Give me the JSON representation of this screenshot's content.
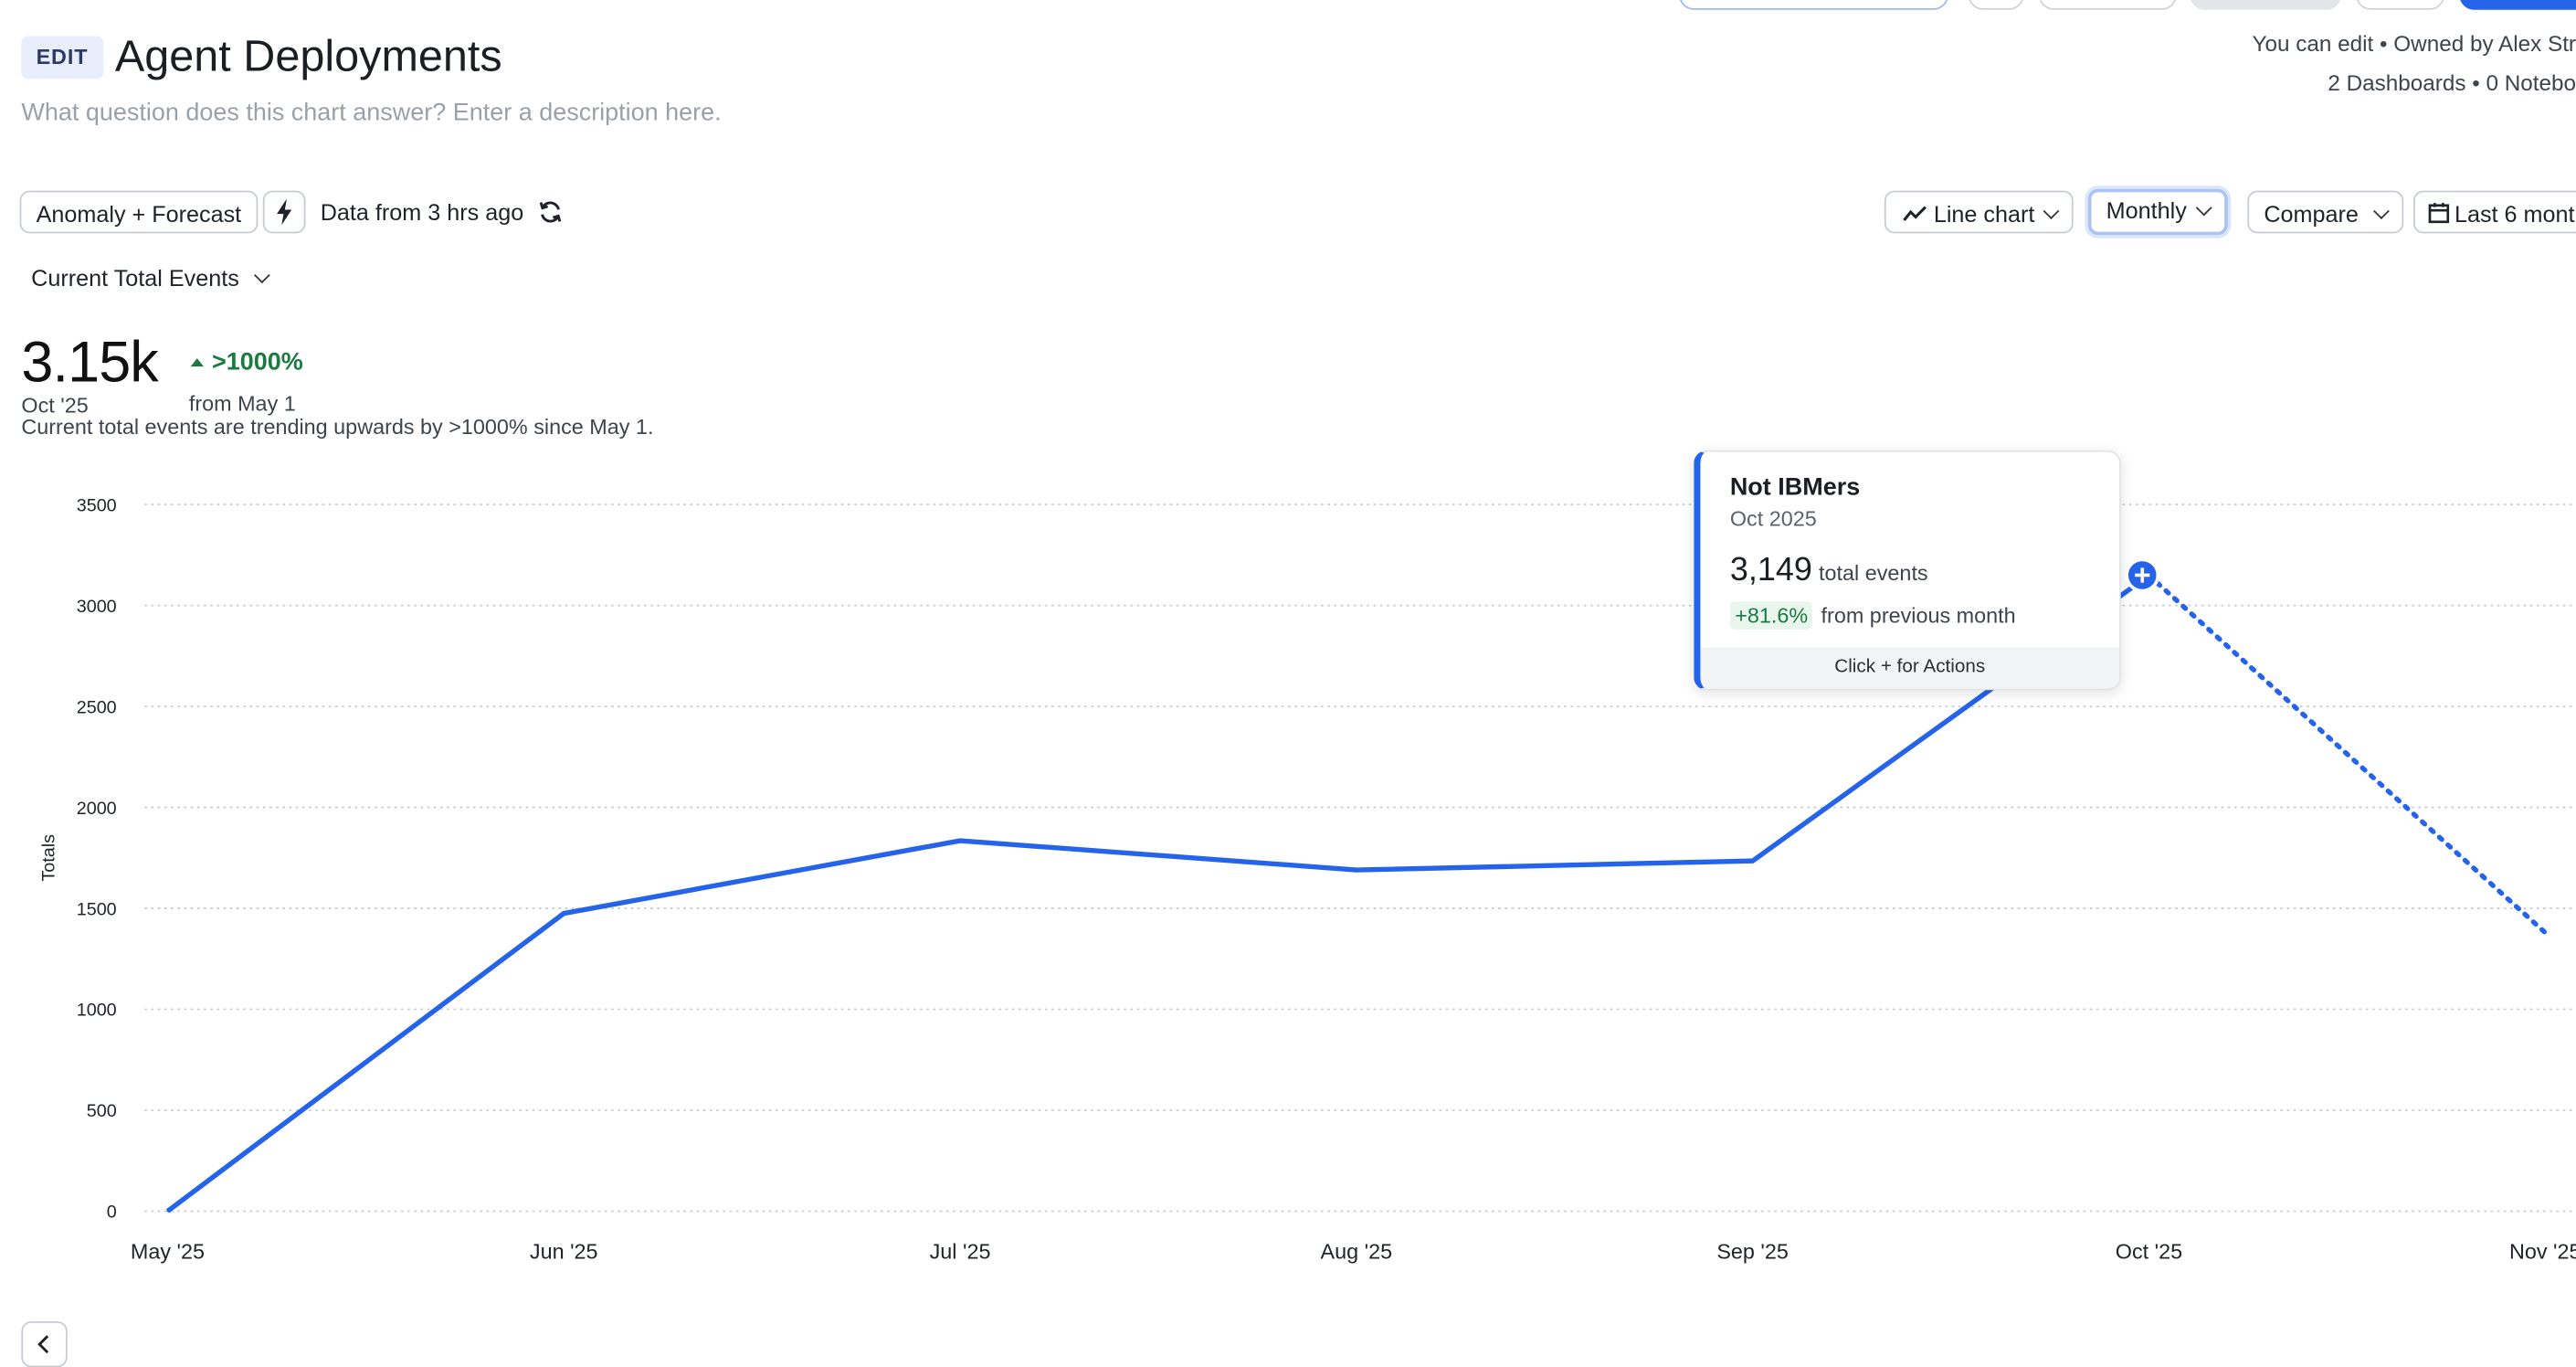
{
  "header": {
    "badge": "EDIT",
    "title": "Agent Deployments",
    "description_placeholder": "What question does this chart answer? Enter a description here.",
    "meta_line1": "You can edit • Owned by Alex Str",
    "meta_line2": "2 Dashboards • 0 Notebo"
  },
  "toolbar": {
    "analysis_mode": "Anomaly + Forecast",
    "data_freshness": "Data from 3 hrs ago",
    "chart_type": "Line chart",
    "interval": "Monthly",
    "compare": "Compare",
    "date_range": "Last 6 month"
  },
  "metric": {
    "selector": "Current Total Events",
    "value": "3.15k",
    "period": "Oct '25",
    "change": ">1000%",
    "change_ref": "from May 1",
    "insight": "Current total events are trending upwards by >1000% since May 1."
  },
  "tooltip": {
    "series": "Not IBMers",
    "date": "Oct 2025",
    "value": "3,149",
    "value_label": "total events",
    "change": "+81.6%",
    "change_label": "from previous month",
    "footer": "Click + for Actions"
  },
  "chart_data": {
    "type": "line",
    "ylabel": "Totals",
    "xlabel": "",
    "categories": [
      "May '25",
      "Jun '25",
      "Jul '25",
      "Aug '25",
      "Sep '25",
      "Oct '25",
      "Nov '25"
    ],
    "yticks": [
      0,
      500,
      1000,
      1500,
      2000,
      2500,
      3000,
      3500
    ],
    "ylim": [
      0,
      3500
    ],
    "grid": true,
    "series": [
      {
        "name": "Not IBMers",
        "color": "#2563eb",
        "values": [
          0,
          1475,
          1835,
          1690,
          1735,
          3149,
          null
        ],
        "forecast": [
          null,
          null,
          null,
          null,
          null,
          3149,
          1380
        ]
      }
    ]
  }
}
